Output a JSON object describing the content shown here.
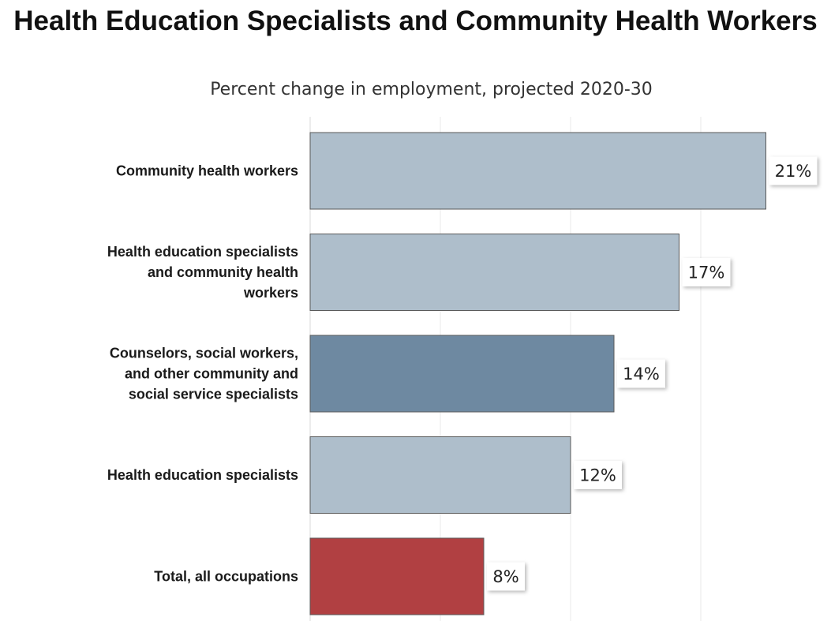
{
  "chart_data": {
    "type": "bar",
    "orientation": "horizontal",
    "title": "Health Education Specialists and Community Health Workers",
    "subtitle": "Percent change in employment, projected 2020-30",
    "categories": [
      [
        "Community health workers"
      ],
      [
        "Health education specialists",
        "and community health",
        "workers"
      ],
      [
        "Counselors, social workers,",
        "and other community and",
        "social service specialists"
      ],
      [
        "Health education specialists"
      ],
      [
        "Total, all occupations"
      ]
    ],
    "values": [
      21,
      17,
      14,
      12,
      8
    ],
    "value_labels": [
      "21%",
      "17%",
      "14%",
      "12%",
      "8%"
    ],
    "bar_colors": [
      "#aebecb",
      "#aebecb",
      "#6e89a1",
      "#aebecb",
      "#b14042"
    ],
    "xlim": [
      0,
      24
    ],
    "grid": true,
    "legend": "none"
  }
}
